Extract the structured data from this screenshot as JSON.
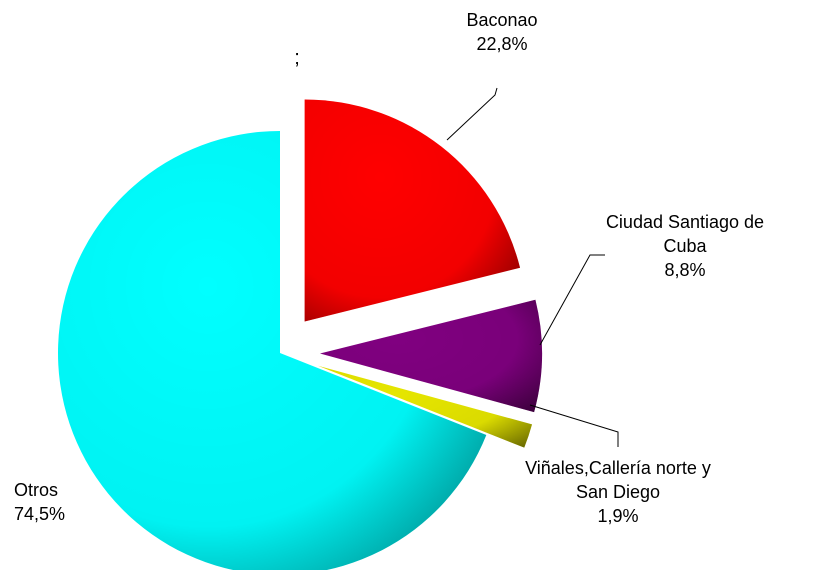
{
  "chart_data": {
    "type": "pie",
    "annotation": ";",
    "categories": [
      "Baconao",
      "Ciudad Santiago de Cuba",
      "Viñales,Callería norte y San Diego",
      "Otros"
    ],
    "values": [
      22.8,
      8.8,
      1.9,
      74.5
    ],
    "value_labels": [
      "22,8%",
      "8,8%",
      "1,9%",
      "74,5%"
    ],
    "colors": [
      "#ff0000",
      "#800080",
      "#e6e600",
      "#00ffff"
    ],
    "exploded": [
      true,
      true,
      true,
      false
    ]
  }
}
